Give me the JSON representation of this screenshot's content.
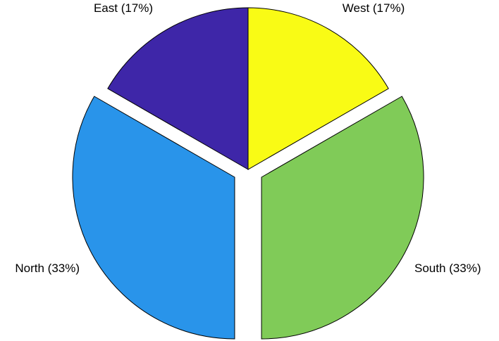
{
  "chart_data": {
    "type": "pie",
    "title": "",
    "slices": [
      {
        "name": "West",
        "value": 1,
        "percent_label": "West (17%)",
        "color": "#F9FB15",
        "exploded": false
      },
      {
        "name": "South",
        "value": 2,
        "percent_label": "South (33%)",
        "color": "#80CB58",
        "exploded": true
      },
      {
        "name": "North",
        "value": 2,
        "percent_label": "North (33%)",
        "color": "#2994EA",
        "exploded": true
      },
      {
        "name": "East",
        "value": 1,
        "percent_label": "East (17%)",
        "color": "#3E26A8",
        "exploded": false
      }
    ],
    "start_angle": "12 o'clock",
    "direction": "clockwise",
    "legend": "none"
  }
}
